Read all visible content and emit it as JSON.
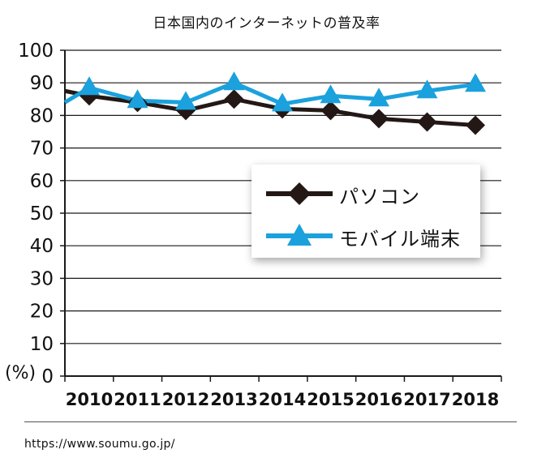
{
  "title": "日本国内のインターネットの普及率",
  "unit_label": "(%)",
  "source": "https://www.soumu.go.jp/",
  "colors": {
    "pc": "#231815",
    "mobile": "#1ba1dd",
    "grid": "#1a1a1a"
  },
  "chart_data": {
    "type": "line",
    "title": "日本国内のインターネットの普及率",
    "ylabel": "(%)",
    "xlabel": "",
    "ylim": [
      0,
      100
    ],
    "yticks": [
      0,
      10,
      20,
      30,
      40,
      50,
      60,
      70,
      80,
      90,
      100
    ],
    "grid": true,
    "legend_position": "right",
    "categories": [
      "2010",
      "2011",
      "2012",
      "2013",
      "2014",
      "2015",
      "2016",
      "2017",
      "2018"
    ],
    "series": [
      {
        "name": "パソコン",
        "marker": "diamond",
        "values": [
          86,
          84,
          81.5,
          85,
          82,
          81.5,
          79,
          78,
          77
        ]
      },
      {
        "name": "モバイル端末",
        "marker": "triangle",
        "values": [
          88.5,
          84.5,
          84,
          90,
          83.5,
          86,
          85,
          87.5,
          89.5
        ]
      }
    ]
  }
}
